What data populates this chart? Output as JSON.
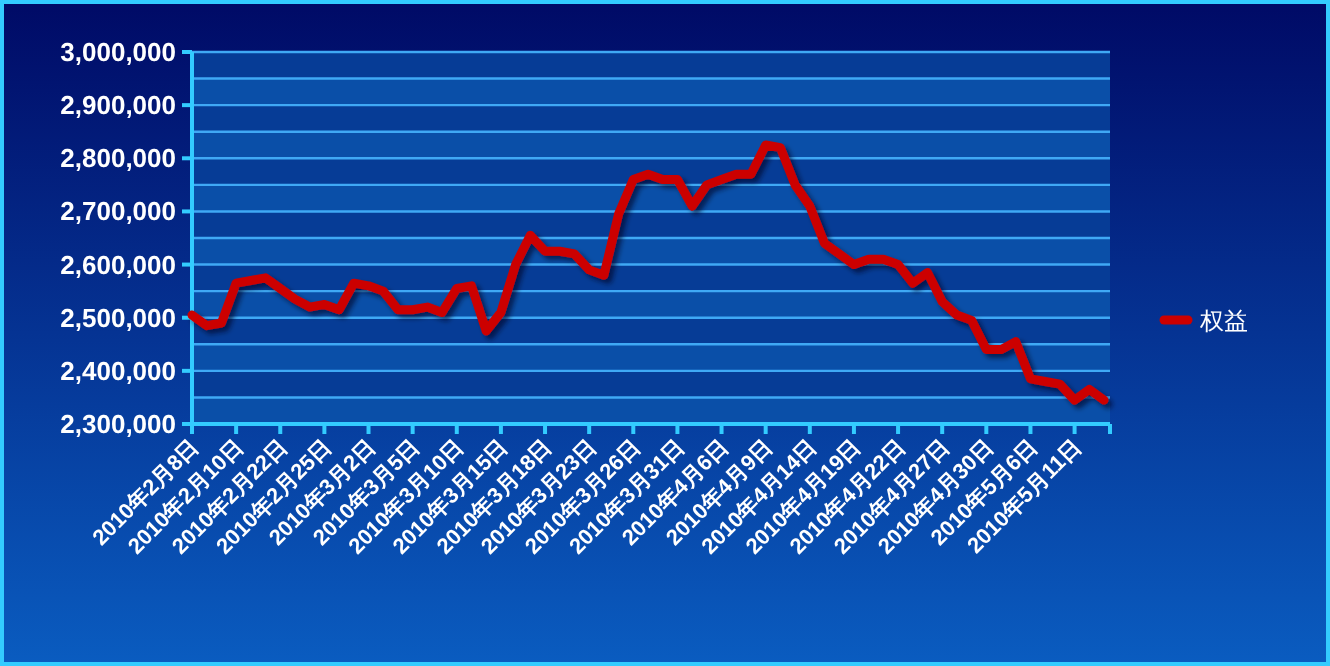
{
  "chart_data": {
    "type": "line",
    "categories": [
      "2010年2月8日",
      null,
      null,
      "2010年2月10日",
      null,
      null,
      "2010年2月22日",
      null,
      null,
      "2010年2月25日",
      null,
      null,
      "2010年3月2日",
      null,
      null,
      "2010年3月5日",
      null,
      null,
      "2010年3月10日",
      null,
      null,
      "2010年3月15日",
      null,
      null,
      "2010年3月18日",
      null,
      null,
      "2010年3月23日",
      null,
      null,
      "2010年3月26日",
      null,
      null,
      "2010年3月31日",
      null,
      null,
      "2010年4月6日",
      null,
      null,
      "2010年4月9日",
      null,
      null,
      "2010年4月14日",
      null,
      null,
      "2010年4月19日",
      null,
      null,
      "2010年4月22日",
      null,
      null,
      "2010年4月27日",
      null,
      null,
      "2010年4月30日",
      null,
      null,
      "2010年5月6日",
      null,
      null,
      "2010年5月11日",
      null,
      null
    ],
    "series": [
      {
        "name": "权益",
        "color": "#cc0000",
        "values": [
          2505000,
          2485000,
          2490000,
          2565000,
          2570000,
          2575000,
          2555000,
          2535000,
          2520000,
          2525000,
          2515000,
          2565000,
          2560000,
          2550000,
          2515000,
          2515000,
          2520000,
          2510000,
          2555000,
          2560000,
          2475000,
          2510000,
          2600000,
          2655000,
          2625000,
          2625000,
          2620000,
          2590000,
          2580000,
          2695000,
          2760000,
          2770000,
          2760000,
          2760000,
          2710000,
          2750000,
          2760000,
          2770000,
          2770000,
          2825000,
          2820000,
          2750000,
          2710000,
          2640000,
          2620000,
          2600000,
          2610000,
          2610000,
          2600000,
          2565000,
          2585000,
          2530000,
          2505000,
          2495000,
          2440000,
          2440000,
          2455000,
          2385000,
          2380000,
          2375000,
          2345000,
          2365000,
          2345000
        ]
      }
    ],
    "ylim": [
      2300000,
      3000000
    ],
    "yticks": [
      {
        "value": 2300000,
        "label": "2,300,000"
      },
      {
        "value": 2350000,
        "label": null
      },
      {
        "value": 2400000,
        "label": "2,400,000"
      },
      {
        "value": 2450000,
        "label": null
      },
      {
        "value": 2500000,
        "label": "2,500,000"
      },
      {
        "value": 2550000,
        "label": null
      },
      {
        "value": 2600000,
        "label": "2,600,000"
      },
      {
        "value": 2650000,
        "label": null
      },
      {
        "value": 2700000,
        "label": "2,700,000"
      },
      {
        "value": 2750000,
        "label": null
      },
      {
        "value": 2800000,
        "label": "2,800,000"
      },
      {
        "value": 2850000,
        "label": null
      },
      {
        "value": 2900000,
        "label": "2,900,000"
      },
      {
        "value": 2950000,
        "label": null
      },
      {
        "value": 3000000,
        "label": "3,000,000"
      }
    ],
    "grid": "y",
    "legend": "right",
    "marker": "none",
    "line_style": "solid"
  }
}
